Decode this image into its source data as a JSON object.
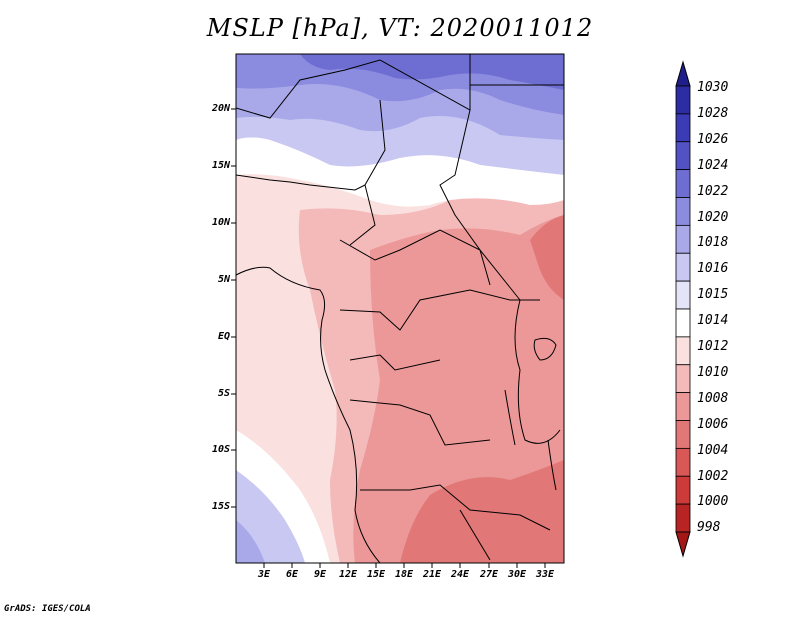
{
  "title": "MSLP [hPa], VT: 2020011012",
  "credit": "GrADS: IGES/COLA",
  "lat_labels": [
    "20N",
    "15N",
    "10N",
    "5N",
    "EQ",
    "5S",
    "10S",
    "15S"
  ],
  "lon_labels": [
    "3E",
    "6E",
    "9E",
    "12E",
    "15E",
    "18E",
    "21E",
    "24E",
    "27E",
    "30E",
    "33E"
  ],
  "colorbar": {
    "levels": [
      "1030",
      "1028",
      "1026",
      "1024",
      "1022",
      "1020",
      "1018",
      "1016",
      "1015",
      "1014",
      "1012",
      "1010",
      "1008",
      "1006",
      "1004",
      "1002",
      "1000",
      "998"
    ],
    "colors": [
      "#1f1f8c",
      "#2d2da3",
      "#3b3bb6",
      "#5252c4",
      "#6e6ed2",
      "#8b8bdf",
      "#a9a9ea",
      "#c8c8f2",
      "#e4e4f8",
      "#ffffff",
      "#fbe0e0",
      "#f4b9b9",
      "#ec9898",
      "#e27777",
      "#d85757",
      "#cc3a3a",
      "#b82424",
      "#a31717"
    ]
  },
  "map": {
    "projection": "lat-lon",
    "lat_range": [
      "19S",
      "24N"
    ],
    "lon_range": [
      "0E",
      "35E"
    ],
    "colors": {
      "pressure_1018": "#a9a9ea",
      "pressure_1016": "#c8c8f2",
      "pressure_1014": "#ffffff",
      "pressure_1012": "#fbe0e0",
      "pressure_1010": "#f4b9b9",
      "pressure_1008": "#ec9898",
      "pressure_1006": "#e27777",
      "pressure_1020": "#8b8bdf",
      "pressure_1022": "#6e6ed2"
    }
  }
}
